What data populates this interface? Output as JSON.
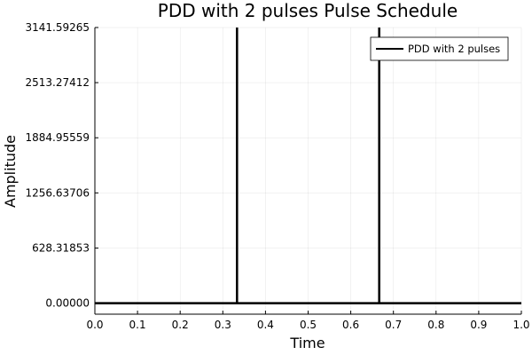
{
  "chart_data": {
    "type": "line",
    "title": "PDD with 2 pulses Pulse Schedule",
    "xlabel": "Time",
    "ylabel": "Amplitude",
    "xlim": [
      0,
      1
    ],
    "ylim": [
      -125.66,
      3141.59265
    ],
    "x_ticks": [
      0.0,
      0.1,
      0.2,
      0.3,
      0.4,
      0.5,
      0.6,
      0.7,
      0.8,
      0.9,
      1.0
    ],
    "x_tick_labels": [
      "0.0",
      "0.1",
      "0.2",
      "0.3",
      "0.4",
      "0.5",
      "0.6",
      "0.7",
      "0.8",
      "0.9",
      "1.0"
    ],
    "y_ticks": [
      0,
      628.31853,
      1256.63706,
      1884.95559,
      2513.27412,
      3141.59265
    ],
    "y_tick_labels": [
      "0.00000",
      "628.31853",
      "1256.63706",
      "1884.95559",
      "2513.27412",
      "3141.59265"
    ],
    "grid": true,
    "legend_position": "top-right",
    "series": [
      {
        "name": "PDD with 2 pulses",
        "color": "#000000",
        "x": [
          0.0,
          0.3333,
          0.3333,
          0.3333,
          0.6667,
          0.6667,
          0.6667,
          1.0
        ],
        "y": [
          0,
          0,
          3141.59265,
          0,
          0,
          3141.59265,
          0,
          0
        ]
      }
    ]
  }
}
